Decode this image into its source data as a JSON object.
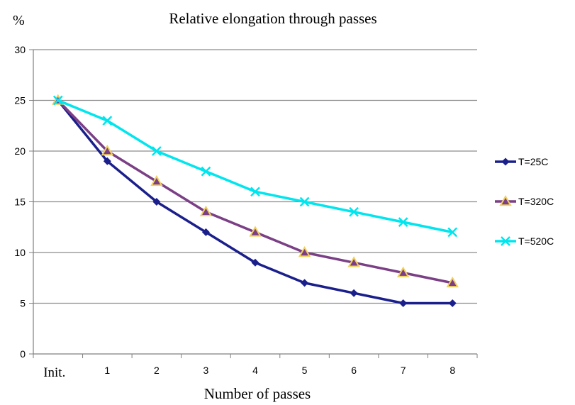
{
  "chart_data": {
    "type": "line",
    "title": "Relative elongation through passes",
    "xlabel": "Number of passes",
    "ylabel": "%",
    "categories": [
      "Init.",
      "1",
      "2",
      "3",
      "4",
      "5",
      "6",
      "7",
      "8"
    ],
    "ylim": [
      0,
      30
    ],
    "yticks": [
      0,
      5,
      10,
      15,
      20,
      25,
      30
    ],
    "grid": "horizontal",
    "legend": "right",
    "series": [
      {
        "name": "T=25C",
        "color": "#1a1f8c",
        "marker": "diamond",
        "values": [
          25,
          19,
          15,
          12,
          9,
          7,
          6,
          5,
          5
        ]
      },
      {
        "name": "T=320C",
        "color": "#7b3f86",
        "marker": "triangle",
        "marker_fill": "#f0d060",
        "values": [
          25,
          20,
          17,
          14,
          12,
          10,
          9,
          8,
          7
        ]
      },
      {
        "name": "T=520C",
        "color": "#00e5ee",
        "marker": "x",
        "values": [
          25,
          23,
          20,
          18,
          16,
          15,
          14,
          13,
          12
        ]
      }
    ]
  }
}
